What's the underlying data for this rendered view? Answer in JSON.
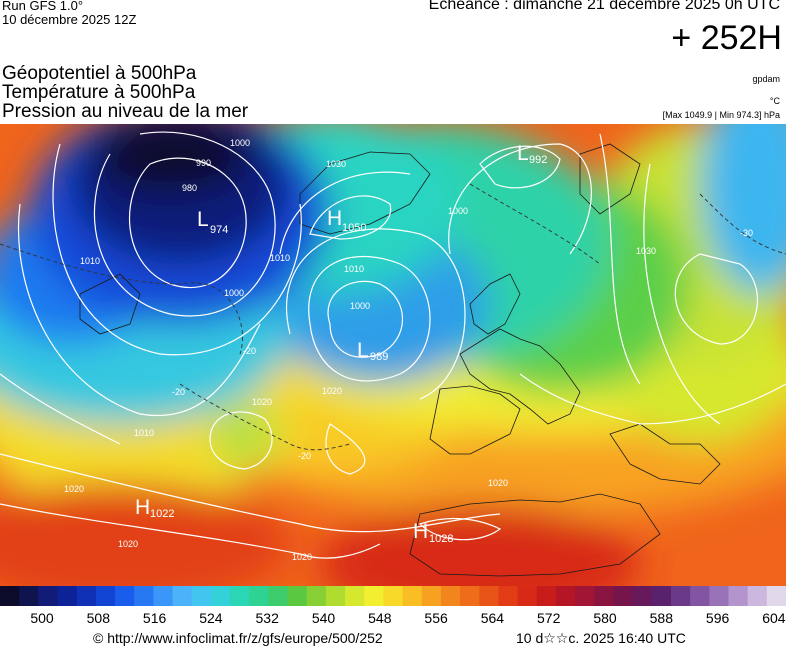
{
  "header": {
    "run": "Run GFS 1.0°",
    "run_date": "10 décembre 2025 12Z",
    "echeance": "Echéance : dimanche 21 décembre 2025 0h UTC",
    "offset": "+ 252H",
    "params": [
      "Géopotentiel à 500hPa",
      "Température à 500hPa",
      "Pression au niveau de la mer"
    ],
    "units": [
      "gpdam",
      "°C",
      "[Max 1049.9 | Min 974.3] hPa"
    ]
  },
  "map": {
    "pressure_centers": [
      {
        "type": "L",
        "value": "974"
      },
      {
        "type": "H",
        "value": "1050"
      },
      {
        "type": "L",
        "value": "992"
      },
      {
        "type": "L",
        "value": "989"
      },
      {
        "type": "H",
        "value": "1022"
      },
      {
        "type": "H",
        "value": "1028"
      }
    ],
    "isobar_labels": [
      "990",
      "980",
      "1000",
      "1030",
      "1010",
      "1000",
      "1010",
      "1000",
      "1000",
      "1010",
      "1020",
      "1020",
      "1010",
      "1020",
      "1020",
      "1020",
      "1020",
      "1030"
    ],
    "temperature_labels": [
      "-20",
      "-20",
      "-20",
      "-30"
    ]
  },
  "legend": {
    "colors": [
      "#0c0c2a",
      "#10144e",
      "#121c78",
      "#0c2296",
      "#1030b6",
      "#1244d4",
      "#1a5cec",
      "#2878f4",
      "#3a96f8",
      "#4cb2fa",
      "#42c6f0",
      "#34d2d8",
      "#2ad6b4",
      "#2ed292",
      "#3ccc6c",
      "#5ac840",
      "#86d036",
      "#b0dc30",
      "#d6e82e",
      "#f2ee30",
      "#f8d828",
      "#f8be24",
      "#f6a220",
      "#f2861c",
      "#ee6c1a",
      "#e85418",
      "#e23c16",
      "#d82816",
      "#c81c1a",
      "#b41626",
      "#a01634",
      "#8a1440",
      "#76144c",
      "#661a5c",
      "#5a226c",
      "#6a3a88",
      "#8254a2",
      "#9a72b8",
      "#b494cc",
      "#ccb8de",
      "#e2d8ec"
    ],
    "ticks": [
      "500",
      "508",
      "516",
      "524",
      "532",
      "540",
      "548",
      "556",
      "564",
      "572",
      "580",
      "588",
      "596",
      "604"
    ]
  },
  "footer": {
    "credit": "© http://www.infoclimat.fr/z/gfs/europe/500/252",
    "stamp": "10 d☆☆c. 2025 16:40 UTC"
  }
}
